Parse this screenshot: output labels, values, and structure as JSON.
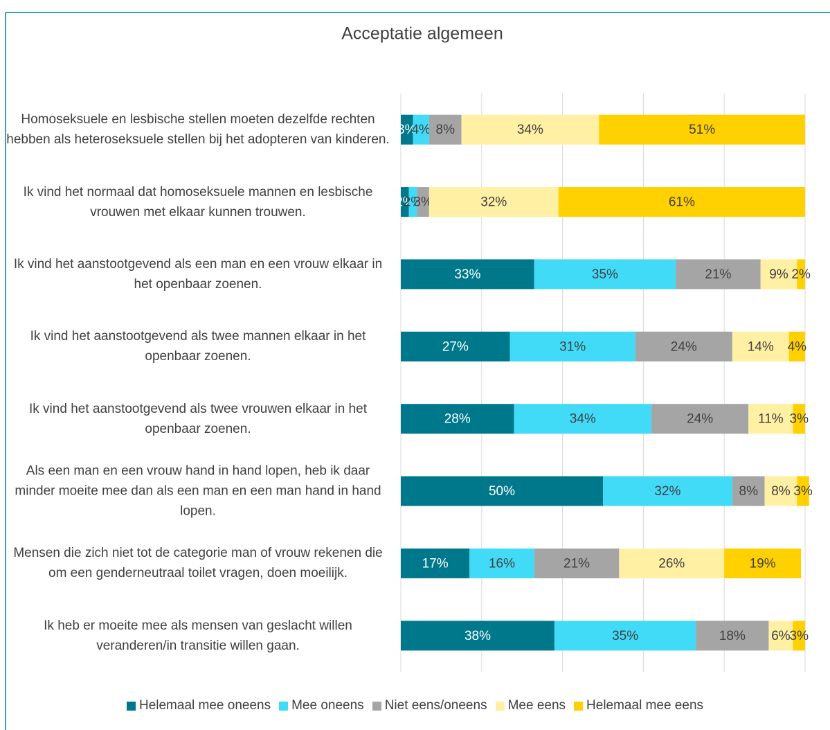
{
  "chart_data": {
    "type": "stacked_barh",
    "title": "Acceptatie algemeen",
    "categories": [
      "Homoseksuele en lesbische stellen moeten dezelfde rechten hebben als heteroseksuele stellen bij het adopteren van kinderen.",
      "Ik vind het normaal dat homoseksuele mannen en lesbische vrouwen met elkaar kunnen trouwen.",
      "Ik vind het aanstootgevend als een man en een vrouw elkaar in het openbaar zoenen.",
      "Ik vind het aanstootgevend als twee mannen elkaar in het openbaar zoenen.",
      "Ik vind het aanstootgevend als twee vrouwen elkaar in het openbaar zoenen.",
      "Als een man en een vrouw hand in hand lopen, heb ik daar minder moeite mee dan als een man en een man hand in hand lopen.",
      "Mensen die zich niet tot de categorie man of vrouw rekenen die om een genderneutraal toilet vragen, doen moeilijk.",
      "Ik heb er moeite mee als mensen van geslacht willen veranderen/in transitie willen gaan."
    ],
    "series": [
      {
        "name": "Helemaal mee oneens",
        "color": "#00788c",
        "values": [
          3,
          2,
          33,
          27,
          28,
          50,
          17,
          38
        ],
        "value_labels": [
          "3%",
          "2%",
          "33%",
          "27%",
          "28%",
          "50%",
          "17%",
          "38%"
        ]
      },
      {
        "name": "Mee oneens",
        "color": "#41dbf7",
        "values": [
          4,
          2,
          35,
          31,
          34,
          32,
          16,
          35
        ],
        "value_labels": [
          "4%",
          "2%",
          "35%",
          "31%",
          "34%",
          "32%",
          "16%",
          "35%"
        ]
      },
      {
        "name": "Niet eens/oneens",
        "color": "#a5a5a5",
        "values": [
          8,
          3,
          21,
          24,
          24,
          8,
          21,
          18
        ],
        "value_labels": [
          "8%",
          "3%",
          "21%",
          "24%",
          "24%",
          "8%",
          "21%",
          "18%"
        ]
      },
      {
        "name": "Mee eens",
        "color": "#fff0a3",
        "values": [
          34,
          32,
          9,
          14,
          11,
          8,
          26,
          6
        ],
        "value_labels": [
          "34%",
          "32%",
          "9%",
          "14%",
          "11%",
          "8%",
          "26%",
          "6%"
        ]
      },
      {
        "name": "Helemaal mee eens",
        "color": "#ffd100",
        "values": [
          51,
          61,
          2,
          4,
          3,
          3,
          19,
          3
        ],
        "value_labels": [
          "51%",
          "61%",
          "2%",
          "4%",
          "3%",
          "3%",
          "19%",
          "3%"
        ]
      }
    ],
    "xlim": [
      0,
      100
    ],
    "xticks": [
      0,
      20,
      40,
      60,
      80,
      100
    ],
    "grid": true,
    "legend": "bottom"
  }
}
